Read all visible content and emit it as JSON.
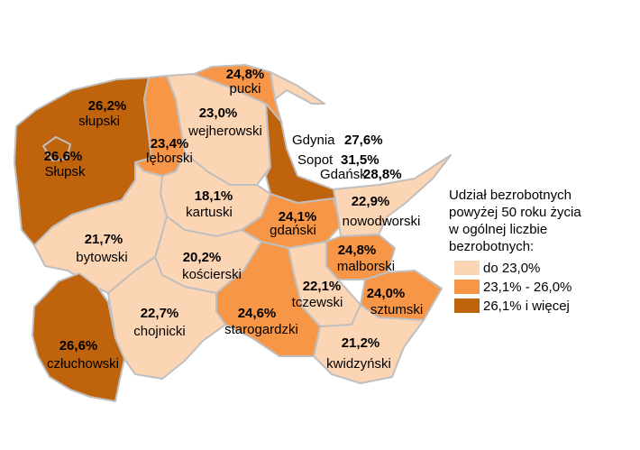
{
  "legend": {
    "title": "Udział bezrobotnych\npowyżej 50 roku życia\nw ogólnej liczbie\nbezrobotnych:",
    "items": [
      {
        "label": "do 23,0%",
        "color": "#fcd5b4"
      },
      {
        "label": "23,1% - 26,0%",
        "color": "#f79646"
      },
      {
        "label": "26,1% i więcej",
        "color": "#c0630d"
      }
    ]
  },
  "regions": [
    {
      "name": "słupski",
      "value": "26,2%",
      "class": "dark"
    },
    {
      "name": "Słupsk",
      "value": "26,6%",
      "class": "dark"
    },
    {
      "name": "lęborski",
      "value": "23,4%",
      "class": "mid"
    },
    {
      "name": "pucki",
      "value": "24,8%",
      "class": "mid"
    },
    {
      "name": "wejherowski",
      "value": "23,0%",
      "class": "light"
    },
    {
      "name": "Gdynia",
      "value": "27,6%",
      "class": "dark"
    },
    {
      "name": "Sopot",
      "value": "31,5%",
      "class": "dark"
    },
    {
      "name": "Gdańsk",
      "value": "28,8%",
      "class": "dark"
    },
    {
      "name": "kartuski",
      "value": "18,1%",
      "class": "light"
    },
    {
      "name": "gdański",
      "value": "24,1%",
      "class": "mid"
    },
    {
      "name": "nowodworski",
      "value": "22,9%",
      "class": "light"
    },
    {
      "name": "malborski",
      "value": "24,8%",
      "class": "mid"
    },
    {
      "name": "sztumski",
      "value": "24,0%",
      "class": "mid"
    },
    {
      "name": "tczewski",
      "value": "22,1%",
      "class": "light"
    },
    {
      "name": "bytowski",
      "value": "21,7%",
      "class": "light"
    },
    {
      "name": "kościerski",
      "value": "20,2%",
      "class": "light"
    },
    {
      "name": "starogardzki",
      "value": "24,6%",
      "class": "mid"
    },
    {
      "name": "chojnicki",
      "value": "22,7%",
      "class": "light"
    },
    {
      "name": "kwidzyński",
      "value": "21,2%",
      "class": "light"
    },
    {
      "name": "człuchowski",
      "value": "26,6%",
      "class": "dark"
    }
  ]
}
